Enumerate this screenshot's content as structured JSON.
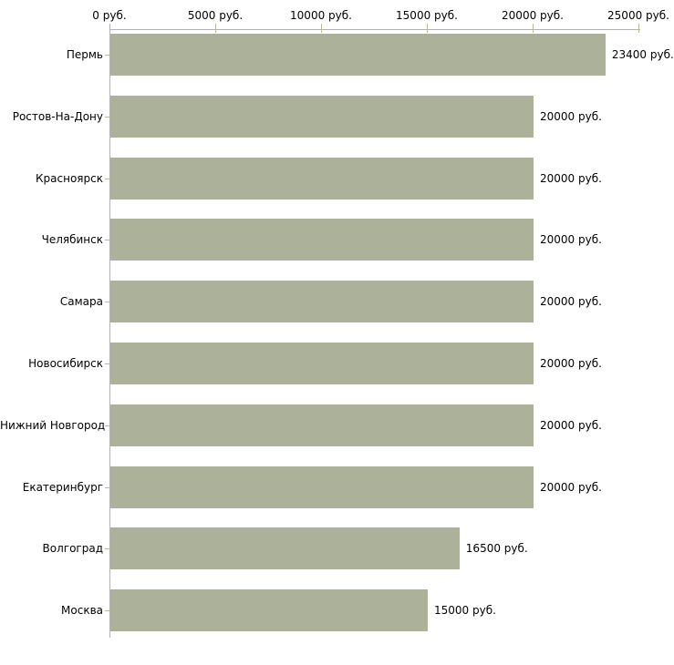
{
  "chart_data": {
    "type": "bar",
    "orientation": "horizontal",
    "title": "",
    "categories": [
      "Пермь",
      "Ростов-На-Дону",
      "Красноярск",
      "Челябинск",
      "Самара",
      "Новосибирск",
      "Нижний Новгород",
      "Екатеринбург",
      "Волгоград",
      "Москва"
    ],
    "values": [
      23400,
      20000,
      20000,
      20000,
      20000,
      20000,
      20000,
      20000,
      16500,
      15000
    ],
    "value_labels": [
      "23400 руб.",
      "20000 руб.",
      "20000 руб.",
      "20000 руб.",
      "20000 руб.",
      "20000 руб.",
      "20000 руб.",
      "20000 руб.",
      "16500 руб.",
      "15000 руб."
    ],
    "x_axis": {
      "position": "top",
      "tick_values": [
        0,
        5000,
        10000,
        15000,
        20000,
        25000
      ],
      "tick_labels": [
        "0 руб.",
        "5000 руб.",
        "10000 руб.",
        "15000 руб.",
        "20000 руб.",
        "25000 руб."
      ]
    },
    "xlim": [
      0,
      25000
    ],
    "grid": false,
    "legend": false,
    "colors": {
      "bar": "#acb29a",
      "axis_line": "#b2b2b2",
      "tick_mark": "#b9bc8b",
      "text": "#000000",
      "background": "#ffffff"
    }
  }
}
